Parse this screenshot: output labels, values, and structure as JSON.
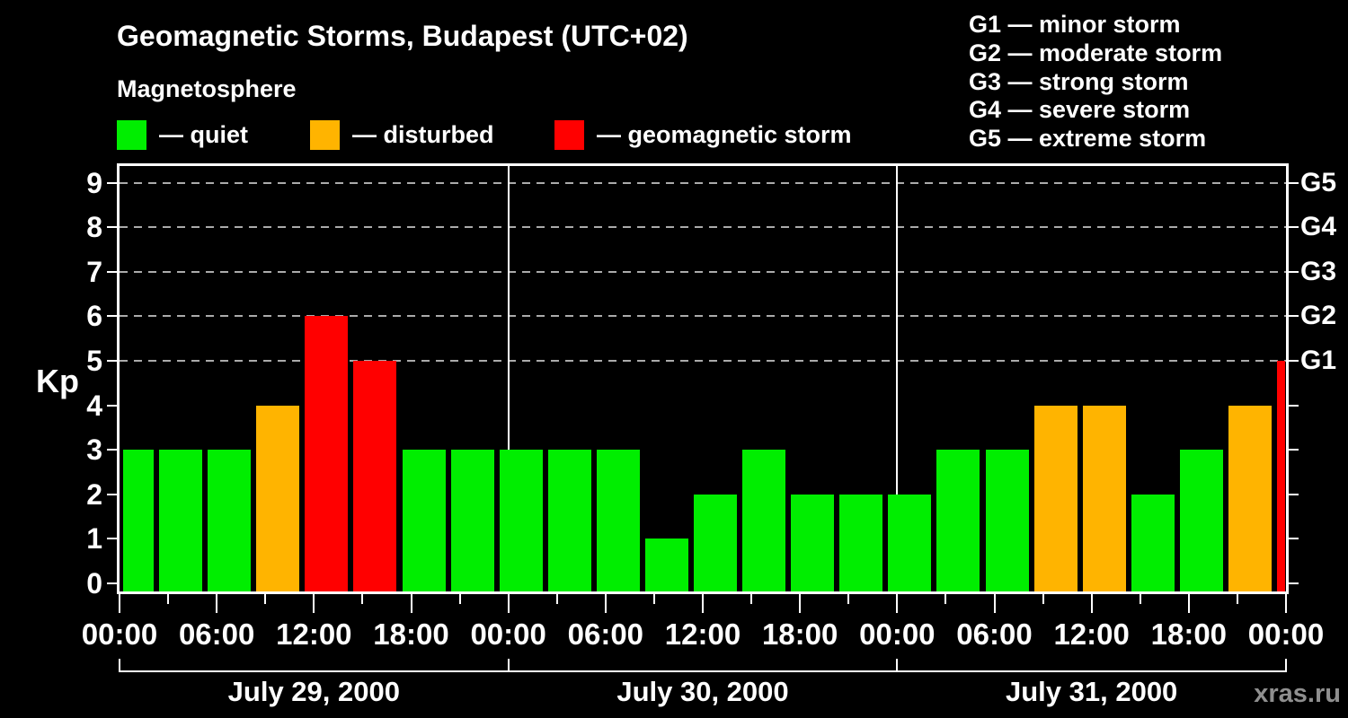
{
  "title": "Geomagnetic Storms, Budapest (UTC+02)",
  "subtitle": "Magnetosphere",
  "condition_legend": {
    "items": [
      {
        "label": "— quiet",
        "color": "#00ee00"
      },
      {
        "label": "— disturbed",
        "color": "#ffb400"
      },
      {
        "label": "— geomagnetic storm",
        "color": "#ff0000"
      }
    ]
  },
  "storm_scale_legend": {
    "items": [
      {
        "text": "G1 — minor storm"
      },
      {
        "text": "G2 — moderate storm"
      },
      {
        "text": "G3 — strong storm"
      },
      {
        "text": "G4 — severe storm"
      },
      {
        "text": "G5 — extreme storm"
      }
    ]
  },
  "y_axis": {
    "label": "Kp",
    "ticks": [
      0,
      1,
      2,
      3,
      4,
      5,
      6,
      7,
      8,
      9
    ]
  },
  "g_levels": [
    {
      "kp": 5,
      "label": "G1"
    },
    {
      "kp": 6,
      "label": "G2"
    },
    {
      "kp": 7,
      "label": "G3"
    },
    {
      "kp": 8,
      "label": "G4"
    },
    {
      "kp": 9,
      "label": "G5"
    }
  ],
  "x_axis": {
    "time_labels": [
      "00:00",
      "06:00",
      "12:00",
      "18:00",
      "00:00",
      "06:00",
      "12:00",
      "18:00",
      "00:00",
      "06:00",
      "12:00",
      "18:00",
      "00:00"
    ],
    "minor_tick_hours": 3,
    "major_tick_hours": 6
  },
  "watermark": "xras.ru",
  "chart_data": {
    "type": "bar",
    "title": "Geomagnetic Storms, Budapest (UTC+02)",
    "ylabel": "Kp",
    "ylim": [
      0,
      9
    ],
    "grid": "dashed horizontal lines at Kp 5-9 (G1-G5)",
    "legend_position": "top",
    "interval_hours": 3,
    "categories": [
      "00:00",
      "03:00",
      "06:00",
      "09:00",
      "12:00",
      "15:00",
      "18:00",
      "21:00"
    ],
    "series": [
      {
        "name": "July 29, 2000",
        "values": [
          3,
          3,
          3,
          4,
          6,
          5,
          3,
          3
        ]
      },
      {
        "name": "July 30, 2000",
        "values": [
          3,
          3,
          3,
          1,
          2,
          3,
          2,
          2
        ]
      },
      {
        "name": "July 31, 2000",
        "values": [
          2,
          3,
          3,
          4,
          4,
          2,
          3,
          4
        ]
      }
    ],
    "partial_next_interval_value": 5,
    "color_rule": {
      "quiet_max_kp": 3,
      "disturbed_kp": 4,
      "storm_min_kp": 5
    }
  }
}
